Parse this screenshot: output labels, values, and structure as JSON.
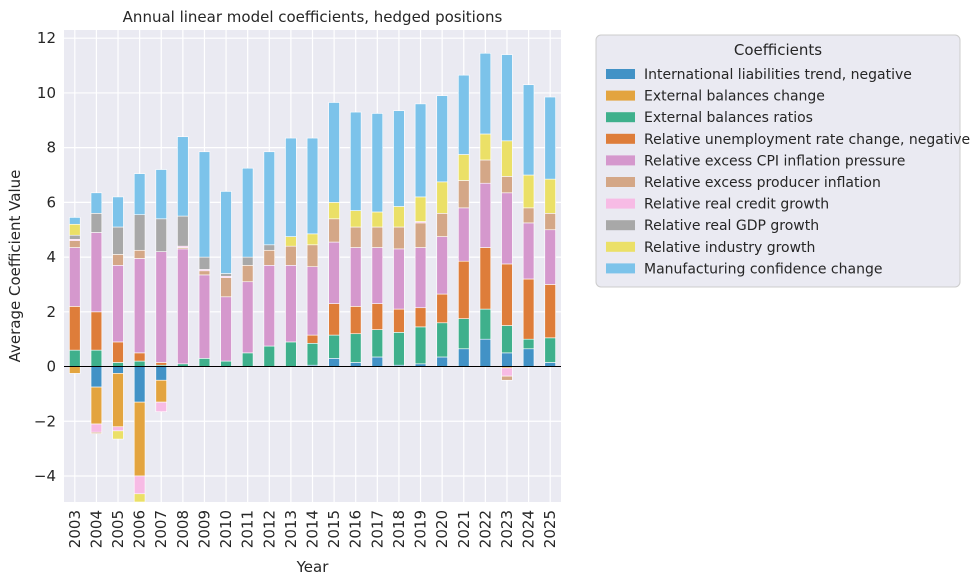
{
  "chart_data": {
    "type": "bar",
    "stacked": true,
    "title": "Annual linear model coefficients, hedged positions",
    "xlabel": "Year",
    "ylabel": "Average Coefficient Value",
    "ylim": [
      -4.95,
      12.3
    ],
    "yticks": [
      -4,
      -2,
      0,
      2,
      4,
      6,
      8,
      10,
      12
    ],
    "grid": true,
    "legend_title": "Coefficients",
    "legend_position": "outside-right-top",
    "colors": {
      "background": "#eaeaf2",
      "grid": "#ffffff",
      "zero_line": "#000000",
      "legend_bg": "#eaeaf2"
    },
    "categories": [
      "2003",
      "2004",
      "2005",
      "2006",
      "2007",
      "2008",
      "2009",
      "2010",
      "2011",
      "2012",
      "2013",
      "2014",
      "2015",
      "2016",
      "2017",
      "2018",
      "2019",
      "2020",
      "2021",
      "2022",
      "2023",
      "2024",
      "2025"
    ],
    "series": [
      {
        "name": "International liabilities trend, negative",
        "color": "#4292c6",
        "values": [
          0.0,
          -0.75,
          -0.25,
          -1.3,
          -0.5,
          0.0,
          0.0,
          0.0,
          0.0,
          0.0,
          0.0,
          0.05,
          0.3,
          0.15,
          0.35,
          0.05,
          0.1,
          0.35,
          0.65,
          1.0,
          0.5,
          0.65,
          0.15
        ]
      },
      {
        "name": "External balances change",
        "color": "#e3a43f",
        "values": [
          -0.25,
          -1.35,
          -1.95,
          -2.7,
          -0.8,
          0.0,
          0.0,
          0.0,
          0.0,
          0.0,
          0.0,
          0.0,
          0.0,
          0.0,
          0.0,
          0.0,
          0.0,
          0.0,
          0.0,
          0.0,
          -0.05,
          0.0,
          0.0
        ]
      },
      {
        "name": "External balances ratios",
        "color": "#3fb08c",
        "values": [
          0.6,
          0.6,
          0.15,
          0.2,
          0.05,
          0.1,
          0.3,
          0.2,
          0.5,
          0.75,
          0.9,
          0.8,
          0.85,
          1.05,
          1.0,
          1.2,
          1.35,
          1.25,
          1.1,
          1.1,
          1.0,
          0.35,
          0.9
        ]
      },
      {
        "name": "Relative unemployment rate change, negative",
        "color": "#de7d3a",
        "values": [
          1.6,
          1.4,
          0.75,
          0.3,
          0.1,
          0.0,
          0.0,
          0.0,
          0.0,
          0.0,
          0.0,
          0.3,
          1.15,
          1.0,
          0.95,
          0.85,
          0.7,
          1.05,
          2.1,
          2.25,
          2.25,
          2.2,
          1.95
        ]
      },
      {
        "name": "Relative excess CPI inflation pressure",
        "color": "#d598cd",
        "values": [
          2.15,
          2.9,
          2.8,
          3.45,
          4.05,
          4.2,
          3.05,
          2.35,
          2.6,
          2.95,
          2.8,
          2.5,
          2.25,
          2.15,
          2.05,
          2.2,
          2.2,
          2.1,
          1.95,
          2.35,
          2.6,
          2.05,
          2.0
        ]
      },
      {
        "name": "Relative excess producer inflation",
        "color": "#d4a787",
        "values": [
          0.25,
          0.0,
          0.4,
          0.3,
          0.0,
          0.05,
          0.15,
          0.7,
          0.6,
          0.55,
          0.7,
          0.8,
          0.85,
          0.75,
          0.75,
          0.8,
          0.9,
          0.85,
          1.0,
          0.85,
          0.6,
          0.55,
          0.6
        ]
      },
      {
        "name": "Relative real credit growth",
        "color": "#f7bbe5",
        "values": [
          0.05,
          -0.3,
          -0.15,
          -0.65,
          -0.35,
          0.05,
          0.05,
          0.05,
          0.0,
          0.0,
          0.0,
          0.0,
          0.0,
          0.0,
          0.0,
          0.0,
          0.05,
          0.0,
          0.0,
          0.0,
          -0.3,
          0.0,
          0.0
        ]
      },
      {
        "name": "Relative real GDP growth",
        "color": "#a8a8a8",
        "values": [
          0.15,
          0.7,
          1.0,
          1.3,
          1.2,
          1.1,
          0.45,
          0.1,
          0.3,
          0.2,
          0.0,
          0.0,
          0.0,
          0.0,
          0.0,
          0.0,
          0.0,
          0.0,
          0.0,
          0.0,
          0.0,
          0.0,
          0.0
        ]
      },
      {
        "name": "Relative industry growth",
        "color": "#ebe067",
        "values": [
          0.4,
          0.0,
          0.0,
          0.0,
          0.0,
          0.0,
          0.0,
          0.0,
          0.0,
          0.0,
          0.35,
          0.4,
          0.6,
          0.6,
          0.55,
          0.75,
          0.9,
          1.15,
          0.95,
          0.95,
          1.3,
          1.2,
          1.25
        ]
      },
      {
        "name": "Manufacturing confidence change",
        "color": "#7cc3ea",
        "values": [
          0.25,
          0.75,
          1.1,
          1.5,
          1.8,
          2.9,
          3.85,
          3.0,
          3.25,
          3.4,
          3.6,
          3.5,
          3.65,
          3.6,
          3.6,
          3.5,
          3.4,
          3.15,
          2.9,
          2.95,
          3.15,
          3.3,
          3.0
        ]
      },
      {
        "name": "Manufacturing confidence change (neg)",
        "color": "#7cc3ea",
        "hidden_in_legend": true,
        "values": [
          0,
          0,
          0,
          0,
          0,
          0,
          0,
          0,
          0,
          0,
          0,
          0,
          0,
          0,
          0,
          0,
          0,
          0,
          0,
          0,
          0,
          0,
          0
        ]
      },
      {
        "name": "Relative industry growth (neg)",
        "color": "#ebe067",
        "hidden_in_legend": true,
        "values": [
          0,
          0,
          -0.3,
          -0.3,
          0,
          0,
          0,
          0,
          0,
          0,
          0,
          0,
          0,
          0,
          0,
          0,
          0,
          0,
          0,
          0,
          0,
          0,
          0
        ]
      },
      {
        "name": "Relative excess producer inflation (neg)",
        "color": "#d4a787",
        "hidden_in_legend": true,
        "values": [
          0,
          -0.05,
          0,
          0,
          0,
          0,
          0,
          0,
          0,
          0,
          0,
          0,
          0,
          0,
          0,
          0,
          0,
          0,
          0,
          0,
          -0.15,
          0,
          0
        ]
      }
    ]
  }
}
